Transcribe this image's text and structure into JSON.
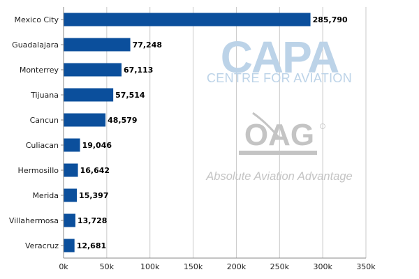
{
  "colors": {
    "bar": "#0b4f9c",
    "grid": "#c8c8c8",
    "axis": "#888888",
    "watermark_blue": "#bcd3e8",
    "watermark_grey": "#c4c4c4"
  },
  "watermarks": {
    "capa_logo": "CAPA",
    "capa_subtitle": "CENTRE FOR AVIATION",
    "oag_logo": "OAG",
    "oag_tagline": "Absolute Aviation Advantage"
  },
  "chart_data": {
    "type": "bar",
    "orientation": "horizontal",
    "title": "",
    "xlabel": "",
    "ylabel": "",
    "categories": [
      "Mexico City",
      "Guadalajara",
      "Monterrey",
      "Tijuana",
      "Cancun",
      "Culiacan",
      "Hermosillo",
      "Merida",
      "Villahermosa",
      "Veracruz"
    ],
    "values": [
      285790,
      77248,
      67113,
      57514,
      48579,
      19046,
      16642,
      15397,
      13728,
      12681
    ],
    "value_labels": [
      "285,790",
      "77,248",
      "67,113",
      "57,514",
      "48,579",
      "19,046",
      "16,642",
      "15,397",
      "13,728",
      "12,681"
    ],
    "xlim": [
      0,
      350000
    ],
    "x_ticks": [
      0,
      50000,
      100000,
      150000,
      200000,
      250000,
      300000,
      350000
    ],
    "x_tick_labels": [
      "0k",
      "50k",
      "100k",
      "150k",
      "200k",
      "250k",
      "300k",
      "350k"
    ],
    "grid": true,
    "legend": "none"
  }
}
